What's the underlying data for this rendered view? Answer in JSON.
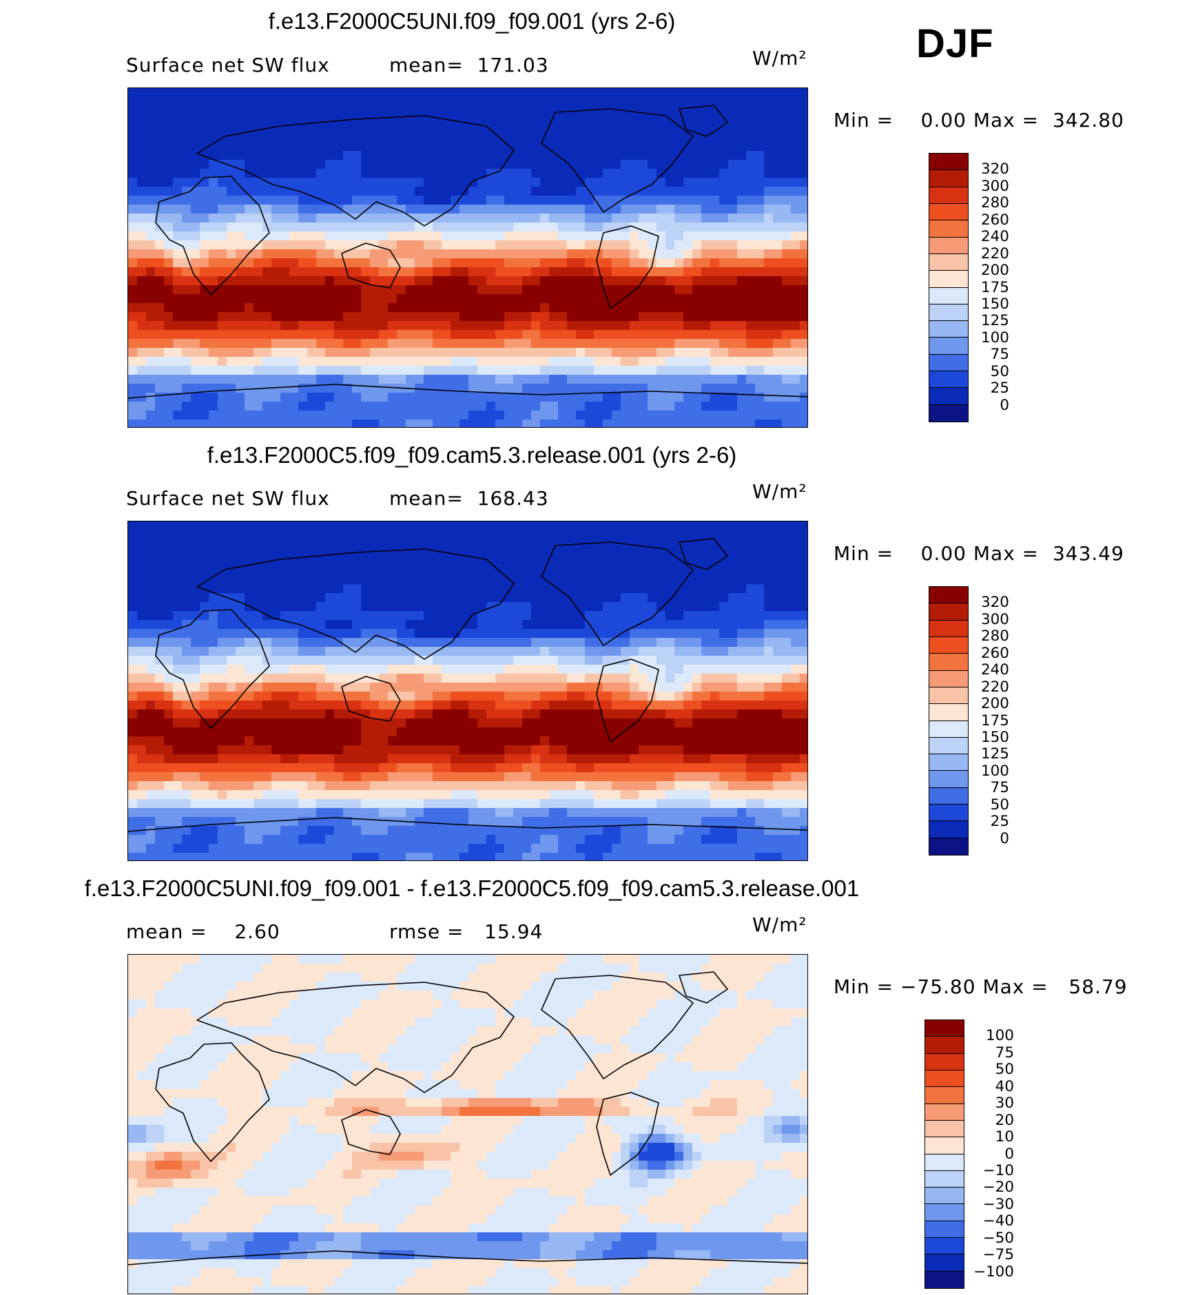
{
  "season": "DJF",
  "panels": [
    {
      "title": "f.e13.F2000C5UNI.f09_f09.001 (yrs 2-6)",
      "left_label": "Surface net SW flux",
      "stat": "mean=  171.03",
      "units": "W/m²",
      "minmax": "Min =    0.00 Max =  342.80",
      "legend": [
        "320",
        "300",
        "280",
        "260",
        "240",
        "220",
        "200",
        "175",
        "150",
        "125",
        "100",
        "75",
        "50",
        "25",
        "0"
      ],
      "field": "model"
    },
    {
      "title": "f.e13.F2000C5.f09_f09.cam5.3.release.001 (yrs 2-6)",
      "left_label": "Surface net SW flux",
      "stat": "mean=  168.43",
      "units": "W/m²",
      "minmax": "Min =    0.00 Max =  343.49",
      "legend": [
        "320",
        "300",
        "280",
        "260",
        "240",
        "220",
        "200",
        "175",
        "150",
        "125",
        "100",
        "75",
        "50",
        "25",
        "0"
      ],
      "field": "model"
    },
    {
      "title": "f.e13.F2000C5UNI.f09_f09.001 - f.e13.F2000C5.f09_f09.cam5.3.release.001",
      "left_label": "mean =    2.60",
      "stat": "rmse =   15.94",
      "units": "W/m²",
      "minmax": "Min = −75.80 Max =   58.79",
      "legend": [
        "100",
        "75",
        "50",
        "40",
        "30",
        "20",
        "10",
        "0",
        "−10",
        "−20",
        "−30",
        "−40",
        "−50",
        "−75",
        "−100"
      ],
      "field": "diff"
    }
  ],
  "colors": {
    "scale": [
      "#880000",
      "#b41c06",
      "#d93212",
      "#ee4f1f",
      "#f3733e",
      "#f69b75",
      "#f9c3a7",
      "#fde5d4",
      "#dce9fa",
      "#bcd3f7",
      "#98b8f4",
      "#6f97ee",
      "#3f6ee6",
      "#1c49da",
      "#0a2ab8",
      "#0c1385"
    ]
  }
}
